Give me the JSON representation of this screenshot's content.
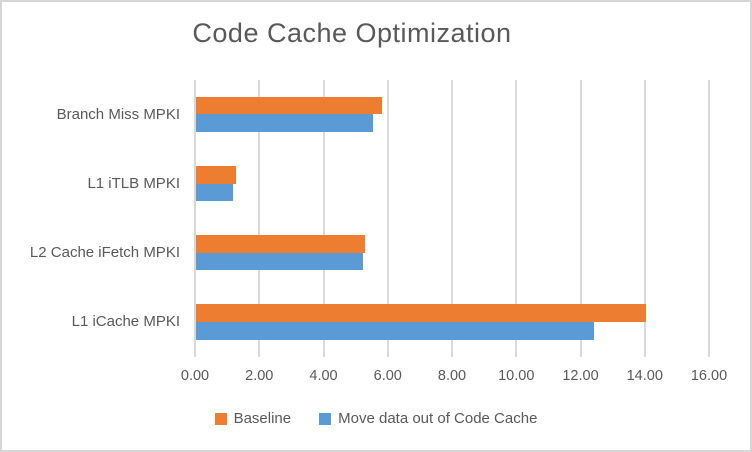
{
  "chart_data": {
    "type": "bar",
    "orientation": "horizontal",
    "title": "Code Cache Optimization",
    "categories": [
      "Branch Miss MPKI",
      "L1 iTLB MPKI",
      "L2 Cache iFetch MPKI",
      "L1 iCache MPKI"
    ],
    "series": [
      {
        "name": "Baseline",
        "color": "#ED7D31",
        "values": [
          5.8,
          1.25,
          5.25,
          14.0
        ]
      },
      {
        "name": "Move data out of Code Cache",
        "color": "#5B9BD5",
        "values": [
          5.5,
          1.15,
          5.2,
          12.4
        ]
      }
    ],
    "x_tick_labels": [
      "0.00",
      "2.00",
      "4.00",
      "6.00",
      "8.00",
      "10.00",
      "12.00",
      "14.00",
      "16.00"
    ],
    "xlim": [
      0,
      16
    ],
    "grid": true,
    "legend_position": "bottom",
    "colors": {
      "baseline": "#ED7D31",
      "optimized": "#5B9BD5",
      "text": "#595959",
      "gridline": "#D9D9D9",
      "border": "#D6D6D6",
      "background": "#FFFFFF"
    }
  }
}
